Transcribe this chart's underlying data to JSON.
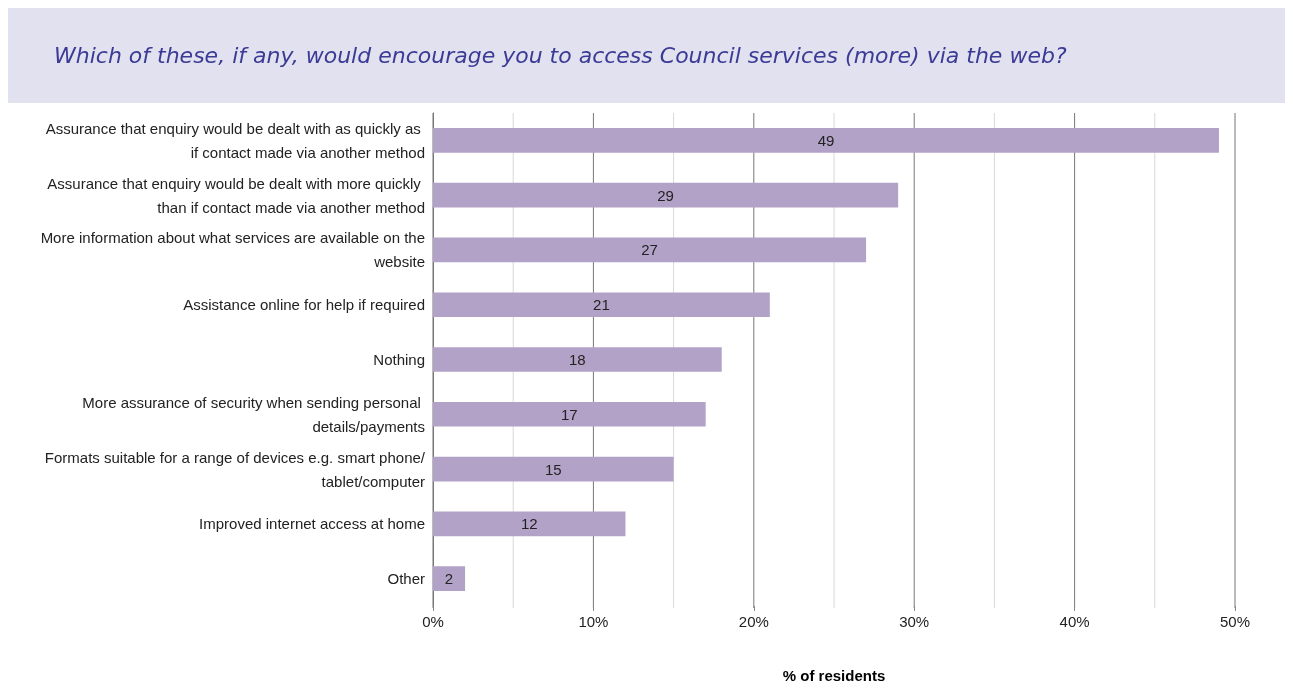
{
  "chart_data": {
    "type": "bar",
    "orientation": "horizontal",
    "title": "Which of these, if any, would encourage you to access Council services (more) via the web?",
    "xlabel": "% of residents",
    "categories": [
      "Assurance that enquiry would be dealt with as quickly as if contact made via another method",
      "Assurance that enquiry would be dealt with more quickly than if contact made via another method",
      "More information about what services are available on the website",
      "Assistance online for help if required",
      "Nothing",
      "More assurance of security when sending personal details/payments",
      "Formats suitable for a range of devices e.g. smart phone/tablet/computer",
      "Improved internet access at home",
      "Other"
    ],
    "values": [
      49,
      29,
      27,
      21,
      18,
      17,
      15,
      12,
      2
    ],
    "color": "#b3a2c7",
    "xlim": [
      0,
      50
    ],
    "xticks": [
      {
        "value": 0,
        "label": "0%"
      },
      {
        "value": 5,
        "label": null
      },
      {
        "value": 10,
        "label": "10%"
      },
      {
        "value": 15,
        "label": null
      },
      {
        "value": 20,
        "label": "20%"
      },
      {
        "value": 25,
        "label": null
      },
      {
        "value": 30,
        "label": "30%"
      },
      {
        "value": 35,
        "label": null
      },
      {
        "value": 40,
        "label": "40%"
      },
      {
        "value": 45,
        "label": null
      },
      {
        "value": 50,
        "label": "50%"
      }
    ],
    "grid": "x",
    "data_labels": true
  }
}
